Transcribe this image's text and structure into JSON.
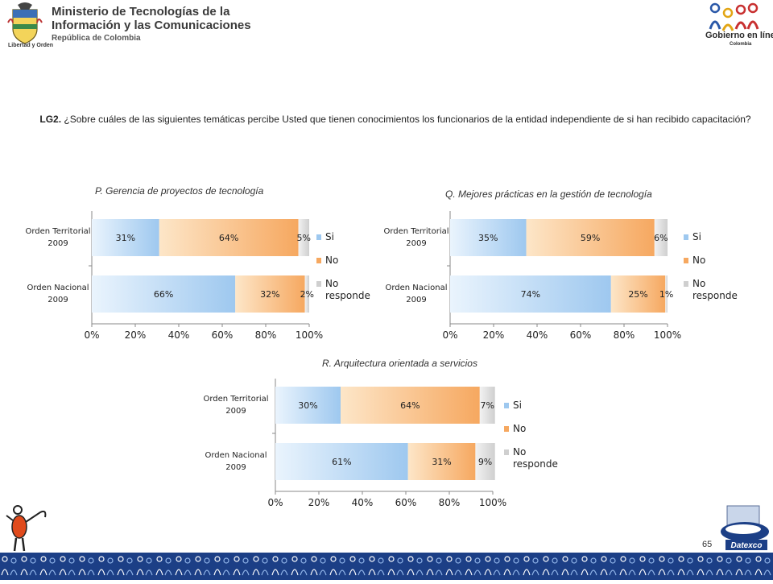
{
  "header": {
    "ministry_line1": "Ministerio de Tecnologías de la",
    "ministry_line2": "Información y las Comunicaciones",
    "ministry_line3": "República de Colombia",
    "crest_caption": "Libertad y Orden",
    "gel_title": "Gobierno en línea",
    "gel_sub": "Colombia"
  },
  "question": {
    "code": "LG2.",
    "text": "¿Sobre cuáles de las siguientes temáticas percibe Usted que tienen conocimientos los funcionarios de la entidad independiente de si han recibido capacitación?"
  },
  "colors": {
    "si": "#9ec8ef",
    "no": "#f6a860",
    "nr": "#cfcfcf",
    "band": "#1c3f86"
  },
  "legend": [
    "Si",
    "No",
    "No responde"
  ],
  "footer": {
    "page_number": "65",
    "brand": "Datexco"
  },
  "chart_data": [
    {
      "type": "bar",
      "orientation": "horizontal",
      "stacked": true,
      "title": "P. Gerencia de proyectos de tecnología",
      "categories": [
        "Orden Territorial 2009",
        "Orden Nacional 2009"
      ],
      "series": [
        {
          "name": "Si",
          "values": [
            31,
            66
          ]
        },
        {
          "name": "No",
          "values": [
            64,
            32
          ]
        },
        {
          "name": "No responde",
          "values": [
            5,
            2
          ]
        }
      ],
      "xlim": [
        0,
        100
      ],
      "xticks": [
        "0%",
        "20%",
        "40%",
        "60%",
        "80%",
        "100%"
      ],
      "legend_position": "right"
    },
    {
      "type": "bar",
      "orientation": "horizontal",
      "stacked": true,
      "title": "Q. Mejores prácticas en la gestión de tecnología",
      "categories": [
        "Orden Territorial 2009",
        "Orden Nacional 2009"
      ],
      "series": [
        {
          "name": "Si",
          "values": [
            35,
            74
          ]
        },
        {
          "name": "No",
          "values": [
            59,
            25
          ]
        },
        {
          "name": "No responde",
          "values": [
            6,
            1
          ]
        }
      ],
      "xlim": [
        0,
        100
      ],
      "xticks": [
        "0%",
        "20%",
        "40%",
        "60%",
        "80%",
        "100%"
      ],
      "legend_position": "right"
    },
    {
      "type": "bar",
      "orientation": "horizontal",
      "stacked": true,
      "title": "R. Arquitectura orientada a servicios",
      "categories": [
        "Orden Territorial 2009",
        "Orden Nacional 2009"
      ],
      "series": [
        {
          "name": "Si",
          "values": [
            30,
            61
          ]
        },
        {
          "name": "No",
          "values": [
            64,
            31
          ]
        },
        {
          "name": "No responde",
          "values": [
            7,
            9
          ]
        }
      ],
      "xlim": [
        0,
        100
      ],
      "xticks": [
        "0%",
        "20%",
        "40%",
        "60%",
        "80%",
        "100%"
      ],
      "legend_position": "right"
    }
  ]
}
